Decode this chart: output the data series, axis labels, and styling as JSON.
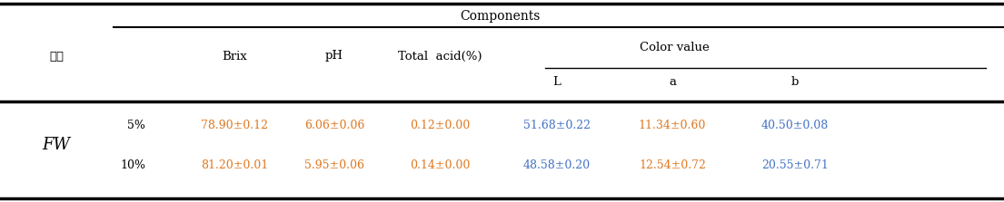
{
  "title": "Components",
  "color_value_label": "Color value",
  "row_label_main": "FW",
  "joecheong_label": "조청",
  "rows": [
    {
      "sub_label": "5%",
      "brix": "78.90±0.12",
      "ph": "6.06±0.06",
      "total_acid": "0.12±0.00",
      "L": "51.68±0.22",
      "a": "11.34±0.60",
      "b": "40.50±0.08"
    },
    {
      "sub_label": "10%",
      "brix": "81.20±0.01",
      "ph": "5.95±0.06",
      "total_acid": "0.14±0.00",
      "L": "48.58±0.20",
      "a": "12.54±0.72",
      "b": "20.55±0.71"
    }
  ],
  "orange": "#e07820",
  "blue": "#4472c4",
  "black": "#000000",
  "bg_color": "#ffffff",
  "fs_title": 10,
  "fs_header": 9.5,
  "fs_data": 9,
  "fs_fw": 13
}
